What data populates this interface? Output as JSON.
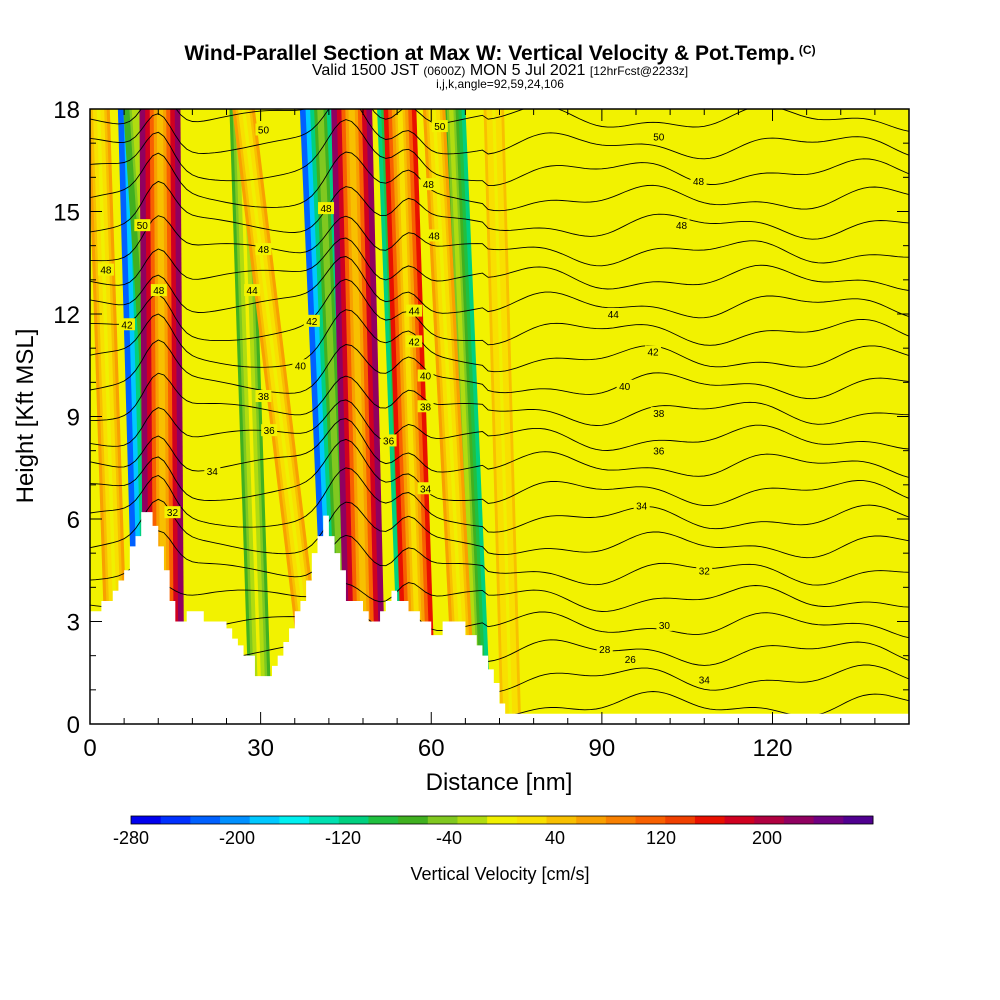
{
  "header": {
    "title": "Wind-Parallel Section at Max W: Vertical Velocity & Pot.Temp.",
    "title_tag": "(C)",
    "subtitle_main": "Valid 1500 JST",
    "subtitle_utc": "(0600Z)",
    "subtitle_date": "MON 5 Jul 2021",
    "subtitle_fcst": "[12hrFcst@2233z]",
    "params": "i,j,k,angle=92,59,24,106"
  },
  "colors": {
    "fill_default": "#f2f200",
    "terrain": "#ffffff",
    "contour": "#000000"
  },
  "chart_data": {
    "type": "heatmap",
    "xlabel": "Distance [nm]",
    "ylabel": "Height [Kft MSL]",
    "xlim": [
      0,
      144
    ],
    "ylim": [
      0,
      18
    ],
    "x_ticks": [
      0,
      30,
      60,
      90,
      120
    ],
    "y_ticks": [
      0,
      3,
      6,
      9,
      12,
      15,
      18
    ],
    "colorbar": {
      "label": "Vertical Velocity [cm/s]",
      "tick_labels": [
        "-280",
        "-200",
        "-120",
        "-40",
        "40",
        "120",
        "200"
      ],
      "tick_values": [
        -280,
        -200,
        -120,
        -40,
        40,
        120,
        200
      ],
      "range": [
        -280,
        280
      ],
      "colors": [
        "#0000ee",
        "#0030ff",
        "#0060ff",
        "#0090ff",
        "#00c8ff",
        "#00f0f0",
        "#00e0b0",
        "#00d080",
        "#20c040",
        "#40b020",
        "#80c820",
        "#b0dc10",
        "#f0f000",
        "#f8e000",
        "#f8c000",
        "#f8a000",
        "#f88000",
        "#f86000",
        "#f04000",
        "#e81000",
        "#d00020",
        "#b00040",
        "#900060",
        "#700080",
        "#500090"
      ]
    },
    "terrain_profile": [
      [
        0,
        3.3
      ],
      [
        2,
        3.3
      ],
      [
        2,
        3.6
      ],
      [
        4,
        3.6
      ],
      [
        4,
        3.9
      ],
      [
        5,
        3.9
      ],
      [
        5,
        4.2
      ],
      [
        6,
        4.2
      ],
      [
        6,
        4.5
      ],
      [
        7,
        4.5
      ],
      [
        7,
        5.2
      ],
      [
        8,
        5.2
      ],
      [
        8,
        5.5
      ],
      [
        9,
        5.5
      ],
      [
        9,
        6.2
      ],
      [
        11,
        6.2
      ],
      [
        11,
        5.8
      ],
      [
        12,
        5.8
      ],
      [
        12,
        5.2
      ],
      [
        13,
        5.2
      ],
      [
        13,
        4.5
      ],
      [
        14,
        4.5
      ],
      [
        14,
        3.6
      ],
      [
        15,
        3.6
      ],
      [
        15,
        3.0
      ],
      [
        17,
        3.0
      ],
      [
        17,
        3.3
      ],
      [
        20,
        3.3
      ],
      [
        20,
        3.0
      ],
      [
        24,
        3.0
      ],
      [
        24,
        2.8
      ],
      [
        25,
        2.8
      ],
      [
        25,
        2.5
      ],
      [
        26,
        2.5
      ],
      [
        26,
        2.3
      ],
      [
        27,
        2.3
      ],
      [
        27,
        2.0
      ],
      [
        29,
        2.0
      ],
      [
        29,
        1.4
      ],
      [
        32,
        1.4
      ],
      [
        32,
        1.7
      ],
      [
        33,
        1.7
      ],
      [
        33,
        2.0
      ],
      [
        34,
        2.0
      ],
      [
        34,
        2.4
      ],
      [
        35,
        2.4
      ],
      [
        35,
        2.8
      ],
      [
        36,
        2.8
      ],
      [
        36,
        3.3
      ],
      [
        37,
        3.3
      ],
      [
        37,
        3.6
      ],
      [
        38,
        3.6
      ],
      [
        38,
        4.2
      ],
      [
        39,
        4.2
      ],
      [
        39,
        5.0
      ],
      [
        40,
        5.0
      ],
      [
        40,
        5.5
      ],
      [
        41,
        5.5
      ],
      [
        41,
        6.1
      ],
      [
        42,
        6.1
      ],
      [
        42,
        5.5
      ],
      [
        43,
        5.5
      ],
      [
        43,
        5.0
      ],
      [
        44,
        5.0
      ],
      [
        44,
        4.5
      ],
      [
        45,
        4.5
      ],
      [
        45,
        3.6
      ],
      [
        48,
        3.6
      ],
      [
        48,
        3.3
      ],
      [
        49,
        3.3
      ],
      [
        49,
        3.0
      ],
      [
        51,
        3.0
      ],
      [
        51,
        3.3
      ],
      [
        52,
        3.3
      ],
      [
        52,
        3.6
      ],
      [
        53,
        3.6
      ],
      [
        53,
        3.9
      ],
      [
        54,
        3.9
      ],
      [
        54,
        3.6
      ],
      [
        56,
        3.6
      ],
      [
        56,
        3.3
      ],
      [
        58,
        3.3
      ],
      [
        58,
        3.0
      ],
      [
        60,
        3.0
      ],
      [
        60,
        2.6
      ],
      [
        62,
        2.6
      ],
      [
        62,
        3.0
      ],
      [
        66,
        3.0
      ],
      [
        66,
        2.6
      ],
      [
        68,
        2.6
      ],
      [
        68,
        2.3
      ],
      [
        69,
        2.3
      ],
      [
        69,
        2.0
      ],
      [
        70,
        2.0
      ],
      [
        70,
        1.6
      ],
      [
        71,
        1.6
      ],
      [
        71,
        1.2
      ],
      [
        72,
        1.2
      ],
      [
        72,
        0.6
      ],
      [
        73,
        0.6
      ],
      [
        73,
        0.3
      ],
      [
        144,
        0.3
      ]
    ],
    "updraft_streaks": [
      {
        "x_bottom": 13.0,
        "x_top": 12.3,
        "w_peak": 240
      },
      {
        "x_bottom": 48.5,
        "x_top": 46.0,
        "w_peak": 240
      },
      {
        "x_bottom": 58.0,
        "x_top": 54.5,
        "w_peak": 160
      },
      {
        "x_bottom": 40.0,
        "x_top": 27.0,
        "w_peak": 60
      },
      {
        "x_bottom": 5.0,
        "x_top": 1.5,
        "w_peak": 60
      },
      {
        "x_bottom": 66.0,
        "x_top": 60.5,
        "w_peak": 60
      },
      {
        "x_bottom": 74.0,
        "x_top": 71.0,
        "w_peak": 40
      }
    ],
    "downdraft_streaks": [
      {
        "x_bottom": 11.5,
        "x_top": 8.5,
        "w_peak": -240
      },
      {
        "x_bottom": 45.0,
        "x_top": 40.5,
        "w_peak": -240
      },
      {
        "x_bottom": 57.0,
        "x_top": 53.0,
        "w_peak": -120
      },
      {
        "x_bottom": 15.0,
        "x_top": 8.0,
        "w_peak": -80
      },
      {
        "x_bottom": 68.0,
        "x_top": 63.5,
        "w_peak": -120
      },
      {
        "x_bottom": 30.0,
        "x_top": 26.5,
        "w_peak": -60
      }
    ],
    "contour_labels": [
      {
        "text": "50",
        "x": 30.5,
        "y": 17.4
      },
      {
        "text": "50",
        "x": 61.5,
        "y": 17.5
      },
      {
        "text": "50",
        "x": 100,
        "y": 17.2
      },
      {
        "text": "48",
        "x": 59.5,
        "y": 15.8
      },
      {
        "text": "48",
        "x": 107,
        "y": 15.9
      },
      {
        "text": "48",
        "x": 60.5,
        "y": 14.3
      },
      {
        "text": "48",
        "x": 104,
        "y": 14.6
      },
      {
        "text": "48",
        "x": 41.5,
        "y": 15.1
      },
      {
        "text": "48",
        "x": 30.5,
        "y": 13.9
      },
      {
        "text": "48",
        "x": 2.8,
        "y": 13.3
      },
      {
        "text": "48",
        "x": 12.1,
        "y": 12.7
      },
      {
        "text": "50",
        "x": 9.2,
        "y": 14.6
      },
      {
        "text": "44",
        "x": 28.5,
        "y": 12.7
      },
      {
        "text": "44",
        "x": 57.0,
        "y": 12.1
      },
      {
        "text": "44",
        "x": 92,
        "y": 12.0
      },
      {
        "text": "42",
        "x": 6.5,
        "y": 11.7
      },
      {
        "text": "42",
        "x": 39,
        "y": 11.8
      },
      {
        "text": "42",
        "x": 57.0,
        "y": 11.2
      },
      {
        "text": "42",
        "x": 99,
        "y": 10.9
      },
      {
        "text": "40",
        "x": 37,
        "y": 10.5
      },
      {
        "text": "40",
        "x": 59,
        "y": 10.2
      },
      {
        "text": "40",
        "x": 94,
        "y": 9.9
      },
      {
        "text": "38",
        "x": 30.5,
        "y": 9.6
      },
      {
        "text": "38",
        "x": 59,
        "y": 9.3
      },
      {
        "text": "38",
        "x": 100,
        "y": 9.1
      },
      {
        "text": "36",
        "x": 31.5,
        "y": 8.6
      },
      {
        "text": "36",
        "x": 52.5,
        "y": 8.3
      },
      {
        "text": "36",
        "x": 100,
        "y": 8.0
      },
      {
        "text": "34",
        "x": 21.5,
        "y": 7.4
      },
      {
        "text": "34",
        "x": 59,
        "y": 6.9
      },
      {
        "text": "34",
        "x": 97,
        "y": 6.4
      },
      {
        "text": "32",
        "x": 14.5,
        "y": 6.2
      },
      {
        "text": "32",
        "x": 108,
        "y": 4.5
      },
      {
        "text": "30",
        "x": 101,
        "y": 2.9
      },
      {
        "text": "28",
        "x": 90.5,
        "y": 2.2
      },
      {
        "text": "26",
        "x": 95,
        "y": 1.9
      },
      {
        "text": "34",
        "x": 108,
        "y": 1.3
      }
    ]
  }
}
